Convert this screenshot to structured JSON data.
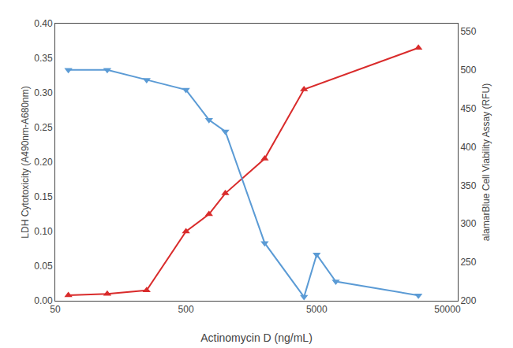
{
  "chart_data": {
    "type": "line",
    "x_label": "Actinomycin D (ng/mL)",
    "y_label": "LDH Cytotoxicity (A490nm-A680nm)",
    "y2_label": "alamarBlue Cell Viability Assay (RFU)",
    "log": "x",
    "grid": false,
    "series": [
      {
        "color": "#d92b2b",
        "marker": "triangle-up",
        "x": [
          63,
          125,
          250,
          500,
          750,
          1000,
          2000,
          4000,
          30000
        ],
        "values": [
          0.008,
          0.01,
          0.015,
          0.1,
          0.125,
          0.155,
          0.205,
          0.305,
          0.365
        ]
      },
      {
        "color": "#5b9bd5",
        "marker": "triangle-down",
        "axis": "y2",
        "x": [
          63,
          125,
          250,
          500,
          750,
          1000,
          2000,
          4000,
          5000,
          7000,
          30000
        ],
        "values": [
          500,
          500,
          487,
          474,
          435,
          420,
          275,
          205,
          260,
          225,
          207
        ]
      }
    ],
    "xlim": [
      50,
      60000
    ],
    "xticks": [
      50,
      500,
      5000,
      50000
    ],
    "ylim": [
      0.0,
      0.4
    ],
    "yticks": [
      {
        "value": 0.0,
        "label": "0.00"
      },
      0.05,
      {
        "value": 0.1,
        "label": "0.10"
      },
      0.15,
      {
        "value": 0.2,
        "label": "0.20"
      },
      0.25,
      {
        "value": 0.3,
        "label": "0.30"
      },
      0.35,
      {
        "value": 0.4,
        "label": "0.40"
      }
    ],
    "y2lim": [
      200,
      560
    ],
    "y2ticks": [
      200,
      250,
      300,
      350,
      400,
      450,
      500,
      550
    ]
  }
}
